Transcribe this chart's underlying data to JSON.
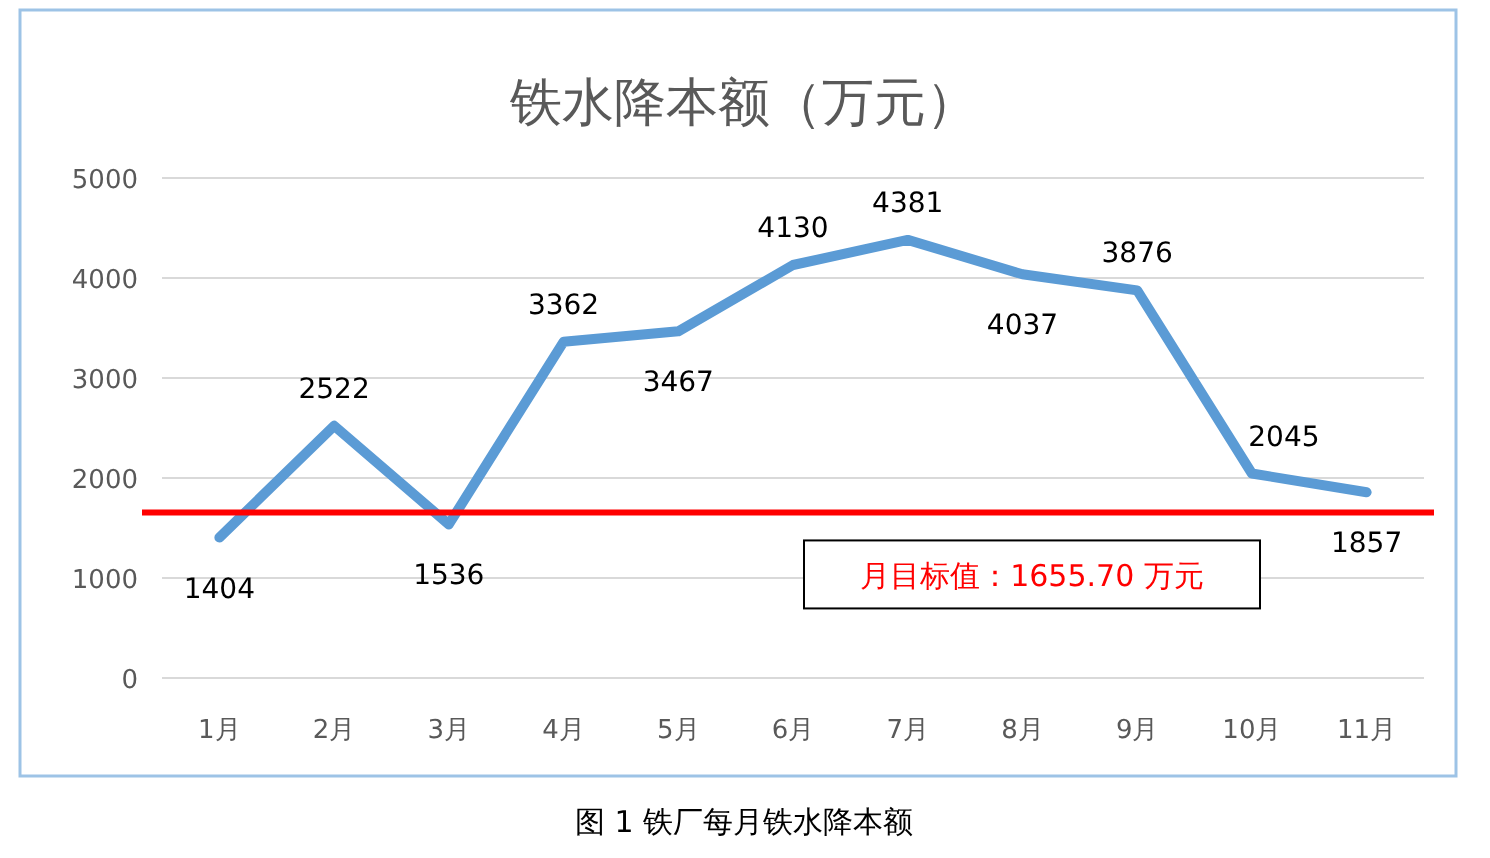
{
  "chart_data": {
    "type": "line",
    "title": "铁水降本额（万元）",
    "categories": [
      "1月",
      "2月",
      "3月",
      "4月",
      "5月",
      "6月",
      "7月",
      "8月",
      "9月",
      "10月",
      "11月"
    ],
    "series": [
      {
        "color": "#5b9bd5",
        "values": [
          1404,
          2522,
          1536,
          3362,
          3467,
          4130,
          4381,
          4037,
          3876,
          2045,
          1857
        ]
      }
    ],
    "ylim": [
      0,
      5000
    ],
    "yticks": [
      0,
      1000,
      2000,
      3000,
      4000,
      5000
    ],
    "grid": "y",
    "data_labels": true,
    "marker": "none",
    "line_style": "solid",
    "ref_lines": [
      {
        "axis": "y",
        "value": 1655.7,
        "label": "月目标值：1655.70 万元",
        "color": "#ff0000"
      }
    ],
    "annotations": [
      "图 1  铁厂每月铁水降本额"
    ]
  }
}
